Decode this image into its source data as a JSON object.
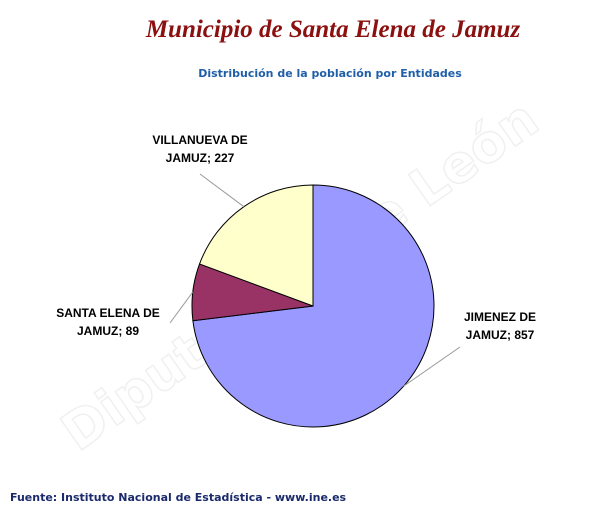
{
  "chart_data": {
    "type": "pie",
    "title": "Municipio de Santa Elena de Jamuz",
    "subtitle": "Distribución de la población por Entidades",
    "values": [
      857,
      89,
      227
    ],
    "value_labels": [
      "JIMENEZ DE JAMUZ; 857",
      "SANTA ELENA DE JAMUZ; 89",
      "VILLANUEVA DE JAMUZ; 227"
    ],
    "colors": [
      "#9999ff",
      "#993366",
      "#ffffcc"
    ],
    "watermark": "Diputación de León",
    "source": "Fuente: Instituto Nacional de Estadística - www.ine.es"
  }
}
